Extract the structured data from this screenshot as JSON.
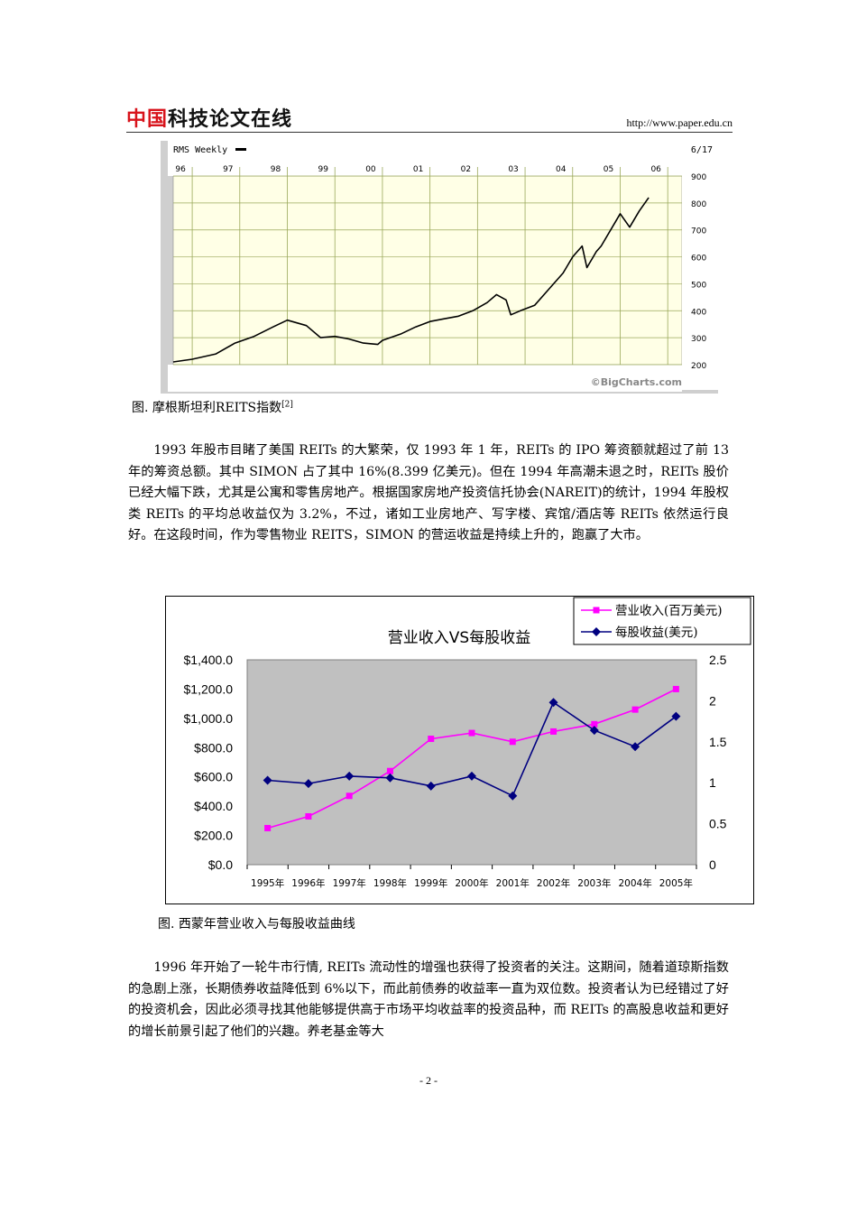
{
  "header": {
    "logo_red": "中国",
    "logo_dark": "科技论文在线",
    "url": "http://www.paper.edu.cn"
  },
  "figure1": {
    "panel_label": "RMS Weekly",
    "date_label": "6/17",
    "watermark": "©BigCharts.com",
    "caption": "图. 摩根斯坦利REITS指数",
    "caption_ref": "[2]",
    "chart_data": {
      "type": "line",
      "title": "",
      "x_ticks": [
        "96",
        "97",
        "98",
        "99",
        "00",
        "01",
        "02",
        "03",
        "04",
        "05",
        "06"
      ],
      "y_ticks": [
        900,
        800,
        700,
        600,
        500,
        400,
        300,
        200
      ],
      "ylim": [
        200,
        900
      ],
      "xlim": [
        1995.6,
        2006.3
      ],
      "series": [
        {
          "x": [
            1995.6,
            1996.0,
            1996.5,
            1996.9,
            1997.3,
            1997.7,
            1998.0,
            1998.4,
            1998.7,
            1999.0,
            1999.3,
            1999.6,
            1999.9,
            2000.0,
            2000.4,
            2000.7,
            2001.0,
            2001.3,
            2001.6,
            2001.9,
            2002.2,
            2002.4,
            2002.6,
            2002.7,
            2002.9,
            2003.2,
            2003.5,
            2003.8,
            2004.0,
            2004.2,
            2004.3,
            2004.5,
            2004.6,
            2004.9,
            2005.0,
            2005.2,
            2005.4,
            2005.6
          ],
          "y": [
            210,
            220,
            240,
            280,
            305,
            340,
            365,
            345,
            300,
            305,
            295,
            280,
            275,
            290,
            315,
            340,
            360,
            370,
            380,
            400,
            430,
            460,
            440,
            385,
            400,
            420,
            480,
            540,
            600,
            640,
            560,
            620,
            640,
            730,
            760,
            710,
            770,
            820
          ]
        }
      ],
      "grid": true
    }
  },
  "paragraph1": "1993 年股市目睹了美国 REITs 的大繁荣，仅 1993 年 1 年，REITs 的 IPO 筹资额就超过了前 13 年的筹资总额。其中 SIMON 占了其中 16%(8.399 亿美元)。但在 1994 年高潮未退之时，REITs 股价已经大幅下跌，尤其是公寓和零售房地产。根据国家房地产投资信托协会(NAREIT)的统计，1994 年股权类 REITs 的平均总收益仅为 3.2%，不过，诸如工业房地产、写字楼、宾馆/酒店等 REITs 依然运行良好。在这段时间，作为零售物业 REITS，SIMON 的营运收益是持续上升的，跑赢了大市。",
  "figure2": {
    "caption": "图. 西蒙年营业收入与每股收益曲线",
    "chart_data": {
      "type": "line",
      "title": "营业收入VS每股收益",
      "categories": [
        "1995年",
        "1996年",
        "1997年",
        "1998年",
        "1999年",
        "2000年",
        "2001年",
        "2002年",
        "2003年",
        "2004年",
        "2005年"
      ],
      "left_axis": {
        "ticks": [
          "$1,400.0",
          "$1,200.0",
          "$1,000.0",
          "$800.0",
          "$600.0",
          "$400.0",
          "$200.0",
          "$0.0"
        ],
        "ylim": [
          0,
          1400
        ]
      },
      "right_axis": {
        "ticks": [
          "2.5",
          "2",
          "1.5",
          "1",
          "0.5",
          "0"
        ],
        "ylim": [
          0,
          2.5
        ]
      },
      "series": [
        {
          "name": "营业收入(百万美元)",
          "axis": "left",
          "color": "#ff00ff",
          "marker": "square",
          "values": [
            250,
            330,
            470,
            640,
            860,
            900,
            840,
            910,
            960,
            1060,
            1200
          ]
        },
        {
          "name": "每股收益(美元)",
          "axis": "right",
          "color": "#000080",
          "marker": "diamond",
          "values": [
            1.03,
            0.99,
            1.08,
            1.06,
            0.96,
            1.08,
            0.84,
            1.98,
            1.64,
            1.44,
            1.81
          ]
        }
      ],
      "plot_background": "#c0c0c0",
      "legend": "top-right"
    }
  },
  "paragraph2": "1996 年开始了一轮牛市行情, REITs 流动性的增强也获得了投资者的关注。这期间，随着道琼斯指数的急剧上涨，长期债券收益降低到 6%以下，而此前债券的收益率一直为双位数。投资者认为已经错过了好的投资机会，因此必须寻找其他能够提供高于市场平均收益率的投资品种，而 REITs 的高股息收益和更好的增长前景引起了他们的兴趣。养老基金等大",
  "page_number": "- 2 -"
}
